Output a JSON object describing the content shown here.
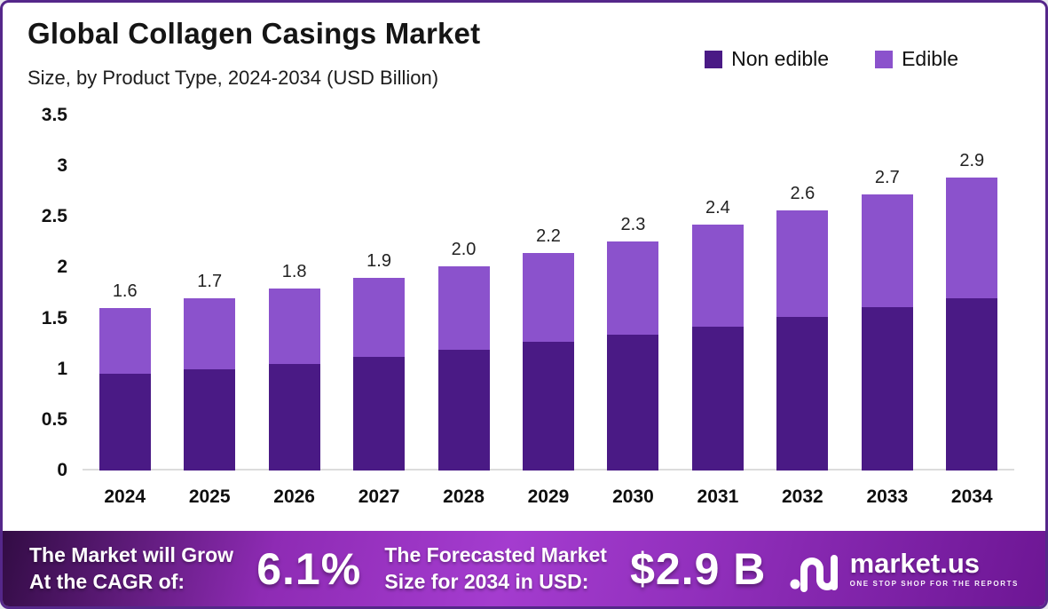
{
  "header": {
    "title": "Global Collagen Casings Market",
    "subtitle": "Size, by Product Type, 2024-2034 (USD Billion)"
  },
  "legend": {
    "items": [
      {
        "label": "Non edible",
        "color": "#4A1A85"
      },
      {
        "label": "Edible",
        "color": "#8B52CC"
      }
    ]
  },
  "chart_data": {
    "type": "bar",
    "stacked": true,
    "title": "Global Collagen Casings Market",
    "subtitle": "Size, by Product Type, 2024-2034 (USD Billion)",
    "xlabel": "",
    "ylabel": "USD Billion",
    "ylim": [
      0,
      3.5
    ],
    "grid": false,
    "legend_position": "top-right",
    "categories": [
      "2024",
      "2025",
      "2026",
      "2027",
      "2028",
      "2029",
      "2030",
      "2031",
      "2032",
      "2033",
      "2034"
    ],
    "series": [
      {
        "name": "Non edible",
        "color": "#4A1A85",
        "values": [
          0.95,
          1.0,
          1.05,
          1.12,
          1.19,
          1.27,
          1.34,
          1.42,
          1.51,
          1.61,
          1.7
        ]
      },
      {
        "name": "Edible",
        "color": "#8B52CC",
        "values": [
          0.65,
          0.7,
          0.74,
          0.78,
          0.82,
          0.87,
          0.92,
          1.0,
          1.05,
          1.11,
          1.19
        ]
      }
    ],
    "total_labels": [
      "1.6",
      "1.7",
      "1.8",
      "1.9",
      "2.0",
      "2.2",
      "2.3",
      "2.4",
      "2.6",
      "2.7",
      "2.9"
    ],
    "y_ticks": [
      "3.5",
      "3",
      "2.5",
      "2",
      "1.5",
      "1",
      "0.5",
      "0"
    ]
  },
  "banner": {
    "cagr_label_line1": "The Market will Grow",
    "cagr_label_line2": "At the CAGR of:",
    "cagr_value": "6.1%",
    "forecast_label_line1": "The Forecasted Market",
    "forecast_label_line2": "Size for 2034 in USD:",
    "forecast_value": "$2.9 B",
    "logo": {
      "name": "market.us",
      "tagline": "ONE STOP SHOP FOR THE REPORTS"
    }
  },
  "colors": {
    "non_edible": "#4A1A85",
    "edible": "#8B52CC",
    "frame_border": "#55278a",
    "banner_gradient_start": "#320c44",
    "banner_gradient_mid": "#a43ccf",
    "banner_gradient_end": "#6d1694"
  }
}
